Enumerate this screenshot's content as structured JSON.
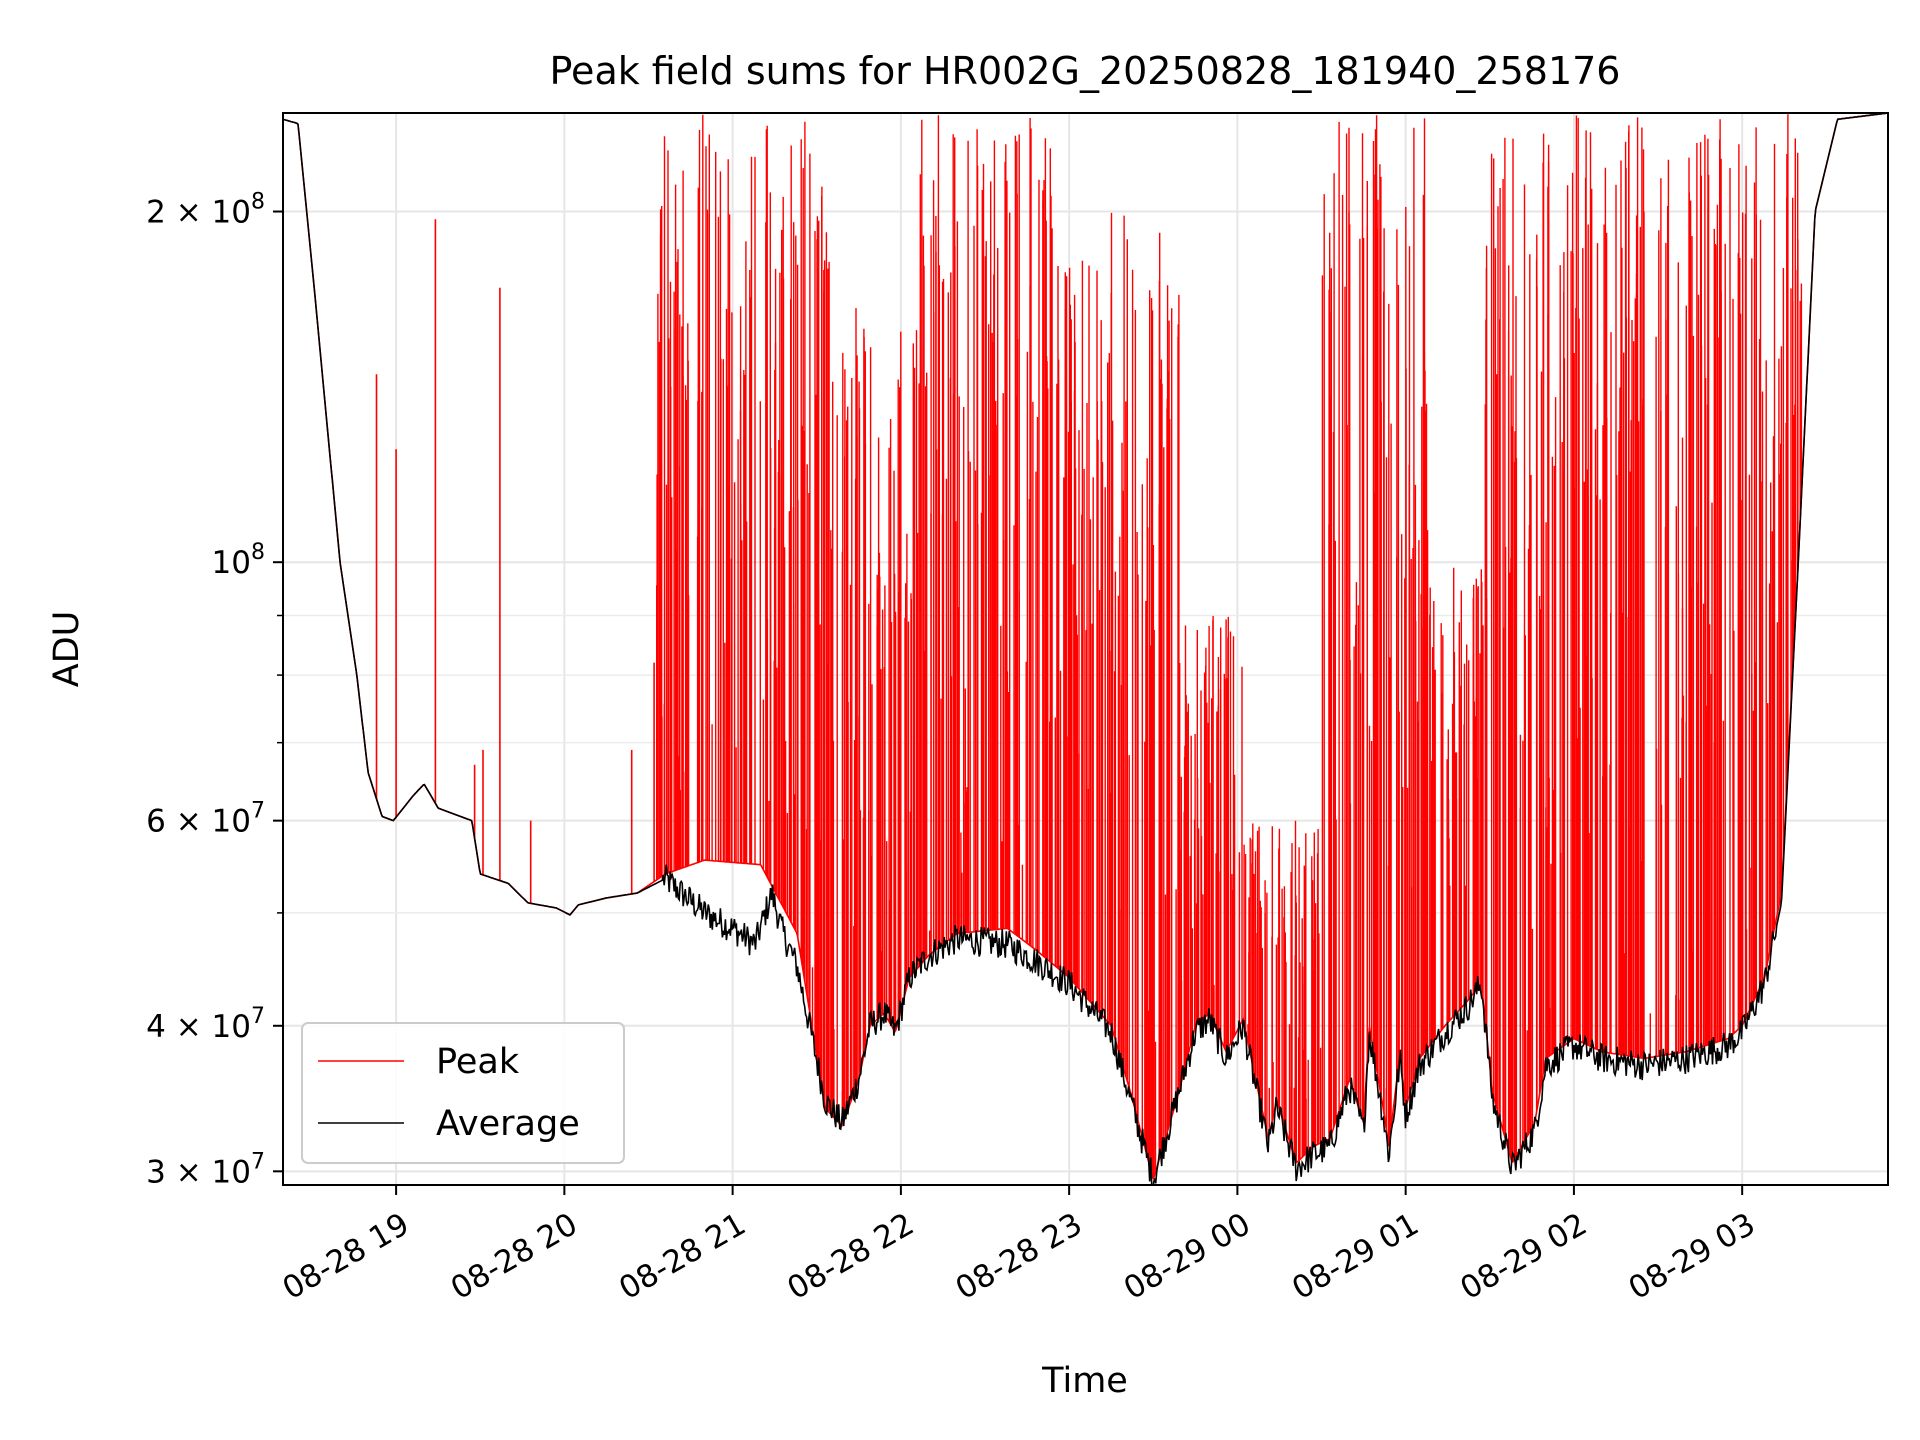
{
  "chart_data": {
    "type": "line",
    "title": "Peak field sums for HR002G_20250828_181940_258176",
    "xlabel": "Time",
    "ylabel": "ADU",
    "yscale": "log",
    "xlim": [
      "2025-08-28 18:19:40",
      "2025-08-29 03:52:00"
    ],
    "ylim": [
      29200000,
      243000000
    ],
    "grid": true,
    "legend_position": "lower-left",
    "x_ticks": [
      {
        "t": "2025-08-28 19:00",
        "label": "08-28 19"
      },
      {
        "t": "2025-08-28 20:00",
        "label": "08-28 20"
      },
      {
        "t": "2025-08-28 21:00",
        "label": "08-28 21"
      },
      {
        "t": "2025-08-28 22:00",
        "label": "08-28 22"
      },
      {
        "t": "2025-08-28 23:00",
        "label": "08-28 23"
      },
      {
        "t": "2025-08-29 00:00",
        "label": "08-29 00"
      },
      {
        "t": "2025-08-29 01:00",
        "label": "08-29 01"
      },
      {
        "t": "2025-08-29 02:00",
        "label": "08-29 02"
      },
      {
        "t": "2025-08-29 03:00",
        "label": "08-29 03"
      }
    ],
    "y_ticks": [
      {
        "value": 30000000,
        "mantissa": "3",
        "exponent": "7"
      },
      {
        "value": 40000000,
        "mantissa": "4",
        "exponent": "7"
      },
      {
        "value": 60000000,
        "mantissa": "6",
        "exponent": "7"
      },
      {
        "value": 100000000,
        "mantissa": "",
        "exponent": "8"
      },
      {
        "value": 200000000,
        "mantissa": "2",
        "exponent": "8"
      }
    ],
    "y_minor_ticks": [
      50000000,
      70000000,
      80000000,
      90000000
    ],
    "series": [
      {
        "name": "Peak",
        "color": "#ff0000",
        "baseline": [
          [
            "2025-08-28 18:19:40",
            240000000
          ],
          [
            "2025-08-28 18:25",
            238000000
          ],
          [
            "2025-08-28 18:31",
            170000000
          ],
          [
            "2025-08-28 18:40",
            100000000
          ],
          [
            "2025-08-28 18:46",
            80000000
          ],
          [
            "2025-08-28 18:50",
            66000000
          ],
          [
            "2025-08-28 18:55",
            60500000
          ],
          [
            "2025-08-28 18:59",
            60000000
          ],
          [
            "2025-08-28 19:06",
            63000000
          ],
          [
            "2025-08-28 19:10",
            64500000
          ],
          [
            "2025-08-28 19:15",
            61500000
          ],
          [
            "2025-08-28 19:27",
            60000000
          ],
          [
            "2025-08-28 19:30",
            54000000
          ],
          [
            "2025-08-28 19:40",
            53000000
          ],
          [
            "2025-08-28 19:47",
            51000000
          ],
          [
            "2025-08-28 19:57",
            50500000
          ],
          [
            "2025-08-28 20:02",
            49800000
          ],
          [
            "2025-08-28 20:05",
            50800000
          ],
          [
            "2025-08-28 20:15",
            51500000
          ],
          [
            "2025-08-28 20:26",
            52000000
          ],
          [
            "2025-08-28 20:36",
            54000000
          ],
          [
            "2025-08-28 20:50",
            55500000
          ],
          [
            "2025-08-28 21:10",
            55000000
          ],
          [
            "2025-08-28 21:23",
            48000000
          ],
          [
            "2025-08-28 21:33",
            34000000
          ],
          [
            "2025-08-28 21:39",
            32800000
          ],
          [
            "2025-08-28 21:45",
            36000000
          ],
          [
            "2025-08-28 21:49",
            40000000
          ],
          [
            "2025-08-28 21:54",
            41000000
          ],
          [
            "2025-08-28 21:58",
            39500000
          ],
          [
            "2025-08-28 22:03",
            44000000
          ],
          [
            "2025-08-28 22:10",
            46000000
          ],
          [
            "2025-08-28 22:20",
            48000000
          ],
          [
            "2025-08-28 22:38",
            48500000
          ],
          [
            "2025-08-28 22:48",
            46500000
          ],
          [
            "2025-08-28 23:00",
            44000000
          ],
          [
            "2025-08-28 23:15",
            40000000
          ],
          [
            "2025-08-28 23:22",
            35000000
          ],
          [
            "2025-08-28 23:30",
            29500000
          ],
          [
            "2025-08-28 23:39",
            35000000
          ],
          [
            "2025-08-28 23:45",
            40000000
          ],
          [
            "2025-08-28 23:50",
            41000000
          ],
          [
            "2025-08-28 23:56",
            38000000
          ],
          [
            "2025-08-29 00:02",
            40500000
          ],
          [
            "2025-08-29 00:11",
            32000000
          ],
          [
            "2025-08-29 00:14",
            34500000
          ],
          [
            "2025-08-29 00:21",
            30500000
          ],
          [
            "2025-08-29 00:27",
            31500000
          ],
          [
            "2025-08-29 00:33",
            32000000
          ],
          [
            "2025-08-29 00:40",
            36000000
          ],
          [
            "2025-08-29 00:45",
            33000000
          ],
          [
            "2025-08-29 00:47",
            40000000
          ],
          [
            "2025-08-29 00:52",
            34000000
          ],
          [
            "2025-08-29 00:54",
            31500000
          ],
          [
            "2025-08-29 00:58",
            38000000
          ],
          [
            "2025-08-29 01:00",
            34000000
          ],
          [
            "2025-08-29 01:05",
            37500000
          ],
          [
            "2025-08-29 01:14",
            40000000
          ],
          [
            "2025-08-29 01:22",
            42000000
          ],
          [
            "2025-08-29 01:27",
            43500000
          ],
          [
            "2025-08-29 01:31",
            35000000
          ],
          [
            "2025-08-29 01:38",
            30500000
          ],
          [
            "2025-08-29 01:46",
            33000000
          ],
          [
            "2025-08-29 01:50",
            37500000
          ],
          [
            "2025-08-29 02:00",
            39000000
          ],
          [
            "2025-08-29 02:10",
            38000000
          ],
          [
            "2025-08-29 02:25",
            37500000
          ],
          [
            "2025-08-29 02:40",
            38000000
          ],
          [
            "2025-08-29 02:55",
            39000000
          ],
          [
            "2025-08-29 03:00",
            40000000
          ],
          [
            "2025-08-29 03:08",
            44000000
          ],
          [
            "2025-08-29 03:14",
            52000000
          ],
          [
            "2025-08-29 03:20",
            100000000
          ],
          [
            "2025-08-29 03:26",
            200000000
          ],
          [
            "2025-08-29 03:34",
            240000000
          ],
          [
            "2025-08-29 03:52",
            243000000
          ]
        ]
      },
      {
        "name": "Average",
        "color": "#000000",
        "values": [
          [
            "2025-08-28 18:19:40",
            240000000
          ],
          [
            "2025-08-28 18:25",
            238000000
          ],
          [
            "2025-08-28 18:31",
            170000000
          ],
          [
            "2025-08-28 18:40",
            100000000
          ],
          [
            "2025-08-28 18:46",
            80000000
          ],
          [
            "2025-08-28 18:50",
            66000000
          ],
          [
            "2025-08-28 18:55",
            60500000
          ],
          [
            "2025-08-28 18:59",
            60000000
          ],
          [
            "2025-08-28 19:06",
            63000000
          ],
          [
            "2025-08-28 19:10",
            64500000
          ],
          [
            "2025-08-28 19:15",
            61500000
          ],
          [
            "2025-08-28 19:27",
            60000000
          ],
          [
            "2025-08-28 19:30",
            54000000
          ],
          [
            "2025-08-28 19:40",
            53000000
          ],
          [
            "2025-08-28 19:47",
            51000000
          ],
          [
            "2025-08-28 19:57",
            50500000
          ],
          [
            "2025-08-28 20:02",
            49800000
          ],
          [
            "2025-08-28 20:05",
            50800000
          ],
          [
            "2025-08-28 20:15",
            51500000
          ],
          [
            "2025-08-28 20:26",
            52000000
          ],
          [
            "2025-08-28 20:36",
            53500000
          ],
          [
            "2025-08-28 20:50",
            50000000
          ],
          [
            "2025-08-28 21:00",
            48500000
          ],
          [
            "2025-08-28 21:08",
            47000000
          ],
          [
            "2025-08-28 21:14",
            52000000
          ],
          [
            "2025-08-28 21:18",
            48000000
          ],
          [
            "2025-08-28 21:23",
            45000000
          ],
          [
            "2025-08-28 21:33",
            34500000
          ],
          [
            "2025-08-28 21:39",
            33000000
          ],
          [
            "2025-08-28 21:45",
            36000000
          ],
          [
            "2025-08-28 21:49",
            40000000
          ],
          [
            "2025-08-28 21:54",
            41000000
          ],
          [
            "2025-08-28 21:58",
            39500000
          ],
          [
            "2025-08-28 22:03",
            44000000
          ],
          [
            "2025-08-28 22:10",
            46000000
          ],
          [
            "2025-08-28 22:20",
            47500000
          ],
          [
            "2025-08-28 22:38",
            47000000
          ],
          [
            "2025-08-28 22:48",
            45500000
          ],
          [
            "2025-08-28 23:00",
            43500000
          ],
          [
            "2025-08-28 23:15",
            39500000
          ],
          [
            "2025-08-28 23:22",
            34500000
          ],
          [
            "2025-08-28 23:30",
            29500000
          ],
          [
            "2025-08-28 23:39",
            35000000
          ],
          [
            "2025-08-28 23:45",
            39500000
          ],
          [
            "2025-08-28 23:50",
            40500000
          ],
          [
            "2025-08-28 23:56",
            37500000
          ],
          [
            "2025-08-29 00:02",
            40000000
          ],
          [
            "2025-08-29 00:11",
            31500000
          ],
          [
            "2025-08-29 00:14",
            34000000
          ],
          [
            "2025-08-29 00:21",
            30200000
          ],
          [
            "2025-08-29 00:27",
            31000000
          ],
          [
            "2025-08-29 00:33",
            31500000
          ],
          [
            "2025-08-29 00:40",
            35500000
          ],
          [
            "2025-08-29 00:45",
            32500000
          ],
          [
            "2025-08-29 00:47",
            39500000
          ],
          [
            "2025-08-29 00:52",
            33500000
          ],
          [
            "2025-08-29 00:54",
            31000000
          ],
          [
            "2025-08-29 00:58",
            37500000
          ],
          [
            "2025-08-29 01:00",
            33500000
          ],
          [
            "2025-08-29 01:05",
            37000000
          ],
          [
            "2025-08-29 01:14",
            39500000
          ],
          [
            "2025-08-29 01:22",
            41500000
          ],
          [
            "2025-08-29 01:27",
            43500000
          ],
          [
            "2025-08-29 01:31",
            34500000
          ],
          [
            "2025-08-29 01:38",
            30200000
          ],
          [
            "2025-08-29 01:46",
            32500000
          ],
          [
            "2025-08-29 01:50",
            37000000
          ],
          [
            "2025-08-29 02:00",
            38500000
          ],
          [
            "2025-08-29 02:10",
            37500000
          ],
          [
            "2025-08-29 02:25",
            37000000
          ],
          [
            "2025-08-29 02:40",
            37500000
          ],
          [
            "2025-08-29 02:55",
            38500000
          ],
          [
            "2025-08-29 03:00",
            39500000
          ],
          [
            "2025-08-29 03:08",
            43500000
          ],
          [
            "2025-08-29 03:14",
            51000000
          ],
          [
            "2025-08-29 03:20",
            100000000
          ],
          [
            "2025-08-29 03:26",
            200000000
          ],
          [
            "2025-08-29 03:34",
            240000000
          ],
          [
            "2025-08-29 03:52",
            243000000
          ]
        ]
      }
    ],
    "isolated_spikes": [
      [
        "2025-08-28 18:53",
        145000000
      ],
      [
        "2025-08-28 19:00",
        125000000
      ],
      [
        "2025-08-28 19:14",
        197000000
      ],
      [
        "2025-08-28 19:37",
        172000000
      ],
      [
        "2025-08-28 19:28",
        67000000
      ],
      [
        "2025-08-28 19:31",
        69000000
      ],
      [
        "2025-08-28 19:48",
        60000000
      ],
      [
        "2025-08-28 20:24",
        69000000
      ],
      [
        "2025-08-28 20:32",
        82000000
      ]
    ],
    "dense_spike_regions": [
      {
        "from": "2025-08-28 20:32",
        "to": "2025-08-28 21:36",
        "max": 243000000
      },
      {
        "from": "2025-08-28 21:36",
        "to": "2025-08-28 22:05",
        "max": 170000000
      },
      {
        "from": "2025-08-28 22:05",
        "to": "2025-08-28 22:55",
        "max": 243000000
      },
      {
        "from": "2025-08-28 22:55",
        "to": "2025-08-28 23:40",
        "max": 200000000
      },
      {
        "from": "2025-08-28 23:40",
        "to": "2025-08-29 00:02",
        "max": 90000000
      },
      {
        "from": "2025-08-29 00:02",
        "to": "2025-08-29 00:30",
        "max": 60000000
      },
      {
        "from": "2025-08-29 00:30",
        "to": "2025-08-29 01:08",
        "max": 243000000
      },
      {
        "from": "2025-08-29 01:08",
        "to": "2025-08-29 01:28",
        "max": 100000000
      },
      {
        "from": "2025-08-29 01:28",
        "to": "2025-08-29 01:52",
        "max": 243000000
      },
      {
        "from": "2025-08-29 01:52",
        "to": "2025-08-29 02:40",
        "max": 243000000
      },
      {
        "from": "2025-08-29 02:40",
        "to": "2025-08-29 03:22",
        "max": 243000000
      }
    ]
  }
}
